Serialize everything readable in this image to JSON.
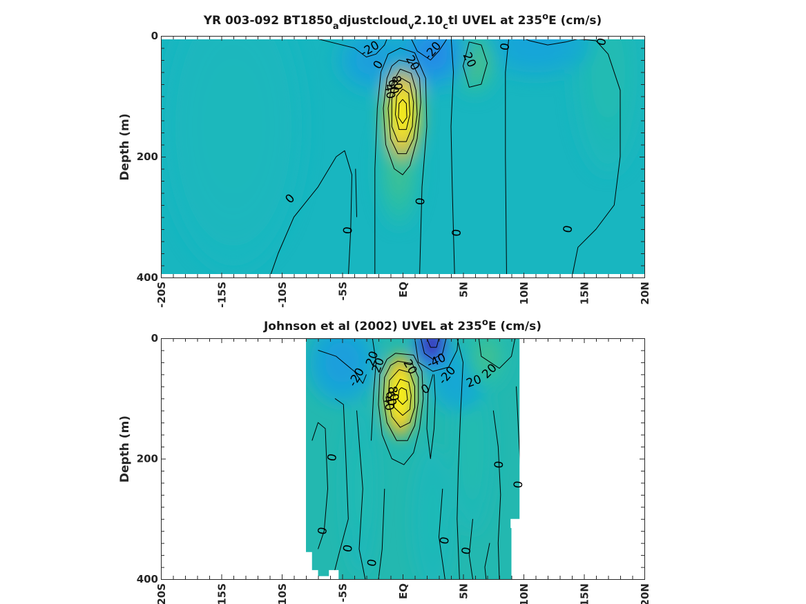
{
  "chart_data": [
    {
      "type": "heatmap",
      "title_parts": [
        "YR 003-092 BT1850",
        "a",
        "djustcloud",
        "v",
        "2.10",
        "c",
        "tl UVEL at 235",
        "o",
        "E (cm/s)"
      ],
      "ylabel": "Depth (m)",
      "xlabel": "",
      "x_ticklabels": [
        "-20S",
        "-15S",
        "-10S",
        "-5S",
        "EQ",
        "5N",
        "10N",
        "15N",
        "20N"
      ],
      "x_ticks": [
        -20,
        -15,
        -10,
        -5,
        0,
        5,
        10,
        15,
        20
      ],
      "xlim": [
        -20,
        20
      ],
      "y_ticklabels": [
        "0",
        "200",
        "400"
      ],
      "y_ticks": [
        0,
        200,
        400
      ],
      "ylim": [
        0,
        400
      ],
      "y_reversed": true,
      "data_xlim": [
        -20,
        20
      ],
      "colormap": [
        "#3e26a8",
        "#2c6ff3",
        "#1aa2db",
        "#18b6c2",
        "#2bbfa3",
        "#7abb63",
        "#d6b42e",
        "#fcc434",
        "#f9f616"
      ],
      "clim": [
        -60,
        100
      ],
      "background": "#18b6c0",
      "features": [
        {
          "lat": 0,
          "depth": 130,
          "sx": 1.3,
          "sy": 65,
          "u": 110
        },
        {
          "lat": -0.3,
          "depth": 220,
          "sx": 1.5,
          "sy": 80,
          "u": 25
        },
        {
          "lat": 2.5,
          "depth": 30,
          "sx": 2.5,
          "sy": 50,
          "u": -30
        },
        {
          "lat": -2.5,
          "depth": 40,
          "sx": 2.5,
          "sy": 45,
          "u": -22
        },
        {
          "lat": 6,
          "depth": 45,
          "sx": 1.5,
          "sy": 45,
          "u": 28
        },
        {
          "lat": 11,
          "depth": 10,
          "sx": 4,
          "sy": 50,
          "u": -18
        },
        {
          "lat": 17,
          "depth": 60,
          "sx": 2.5,
          "sy": 140,
          "u": 10
        },
        {
          "lat": -14,
          "depth": 150,
          "sx": 5,
          "sy": 200,
          "u": 4
        }
      ],
      "contour_labels": [
        {
          "text": "-20",
          "lat": -2.7,
          "depth": 22,
          "angle": -30
        },
        {
          "text": "-20",
          "lat": 2.5,
          "depth": 25,
          "angle": -50
        },
        {
          "text": "20",
          "lat": 0.8,
          "depth": 45,
          "angle": 60
        },
        {
          "text": "0",
          "lat": -2,
          "depth": 48,
          "angle": -60
        },
        {
          "text": "20",
          "lat": 5.5,
          "depth": 40,
          "angle": 65
        },
        {
          "text": "0",
          "lat": 8.5,
          "depth": 18,
          "angle": -80
        },
        {
          "text": "0",
          "lat": 16.5,
          "depth": 10,
          "angle": -75
        },
        {
          "text": "60",
          "lat": -0.8,
          "depth": 84,
          "angle": 80
        },
        {
          "text": "80",
          "lat": -0.5,
          "depth": 78,
          "angle": 80
        },
        {
          "text": "40",
          "lat": -1.1,
          "depth": 92,
          "angle": 80
        },
        {
          "text": "0",
          "lat": -9.3,
          "depth": 270,
          "angle": -45
        },
        {
          "text": "0",
          "lat": -4.5,
          "depth": 322,
          "angle": -85
        },
        {
          "text": "0",
          "lat": 1.5,
          "depth": 274,
          "angle": -85
        },
        {
          "text": "0",
          "lat": 4.5,
          "depth": 326,
          "angle": -85
        },
        {
          "text": "0",
          "lat": 13.7,
          "depth": 320,
          "angle": -80
        }
      ]
    },
    {
      "type": "heatmap",
      "title_parts": [
        "Johnson et al (2002) UVEL at 235",
        "o",
        "E (cm/s)"
      ],
      "ylabel": "Depth (m)",
      "xlabel": "",
      "x_ticklabels": [
        "-20S",
        "-15S",
        "-10S",
        "-5S",
        "EQ",
        "5N",
        "10N",
        "15N",
        "20N"
      ],
      "x_ticks": [
        -20,
        -15,
        -10,
        -5,
        0,
        5,
        10,
        15,
        20
      ],
      "xlim": [
        -20,
        20
      ],
      "y_ticklabels": [
        "0",
        "200",
        "400"
      ],
      "y_ticks": [
        0,
        200,
        400
      ],
      "ylim": [
        0,
        400
      ],
      "y_reversed": true,
      "data_xlim": [
        -8,
        9.5
      ],
      "colormap": [
        "#3e26a8",
        "#2c6ff3",
        "#1aa2db",
        "#18b6c2",
        "#2bbfa3",
        "#7abb63",
        "#d6b42e",
        "#fcc434",
        "#f9f616"
      ],
      "clim": [
        -60,
        100
      ],
      "background": "#23b8b0",
      "features": [
        {
          "lat": -0.2,
          "depth": 95,
          "sx": 1.2,
          "sy": 60,
          "u": 115
        },
        {
          "lat": 2.4,
          "depth": 10,
          "sx": 1.2,
          "sy": 35,
          "u": -60
        },
        {
          "lat": -5,
          "depth": 40,
          "sx": 2.5,
          "sy": 60,
          "u": -22
        },
        {
          "lat": 4.5,
          "depth": 70,
          "sx": 2,
          "sy": 45,
          "u": -15
        },
        {
          "lat": 7,
          "depth": 30,
          "sx": 1.5,
          "sy": 45,
          "u": 25
        },
        {
          "lat": 5.8,
          "depth": 180,
          "sx": 1.5,
          "sy": 120,
          "u": 12
        },
        {
          "lat": -3.5,
          "depth": 250,
          "sx": 1.2,
          "sy": 120,
          "u": 10
        },
        {
          "lat": 2.5,
          "depth": 300,
          "sx": 1.5,
          "sy": 100,
          "u": 8
        }
      ],
      "contour_labels": [
        {
          "text": "-20",
          "lat": -3.8,
          "depth": 65,
          "angle": -60
        },
        {
          "text": "20",
          "lat": -2.0,
          "depth": 45,
          "angle": -70
        },
        {
          "text": "20",
          "lat": -2.5,
          "depth": 34,
          "angle": -70
        },
        {
          "text": "20",
          "lat": 0.6,
          "depth": 48,
          "angle": 60
        },
        {
          "text": "-40",
          "lat": 2.8,
          "depth": 38,
          "angle": -25
        },
        {
          "text": "-20",
          "lat": 3.7,
          "depth": 62,
          "angle": -50
        },
        {
          "text": "0",
          "lat": 1.9,
          "depth": 85,
          "angle": -30
        },
        {
          "text": "20",
          "lat": 5.9,
          "depth": 72,
          "angle": -20
        },
        {
          "text": "20",
          "lat": 7.2,
          "depth": 55,
          "angle": -45
        },
        {
          "text": "60",
          "lat": -1.0,
          "depth": 100,
          "angle": 80
        },
        {
          "text": "80",
          "lat": -0.8,
          "depth": 92,
          "angle": 80
        },
        {
          "text": "40",
          "lat": -1.2,
          "depth": 108,
          "angle": 80
        },
        {
          "text": "0",
          "lat": -5.8,
          "depth": 198,
          "angle": -80
        },
        {
          "text": "0",
          "lat": 8.0,
          "depth": 210,
          "angle": -85
        },
        {
          "text": "0",
          "lat": 9.6,
          "depth": 243,
          "angle": -85
        },
        {
          "text": "0",
          "lat": -6.6,
          "depth": 320,
          "angle": -80
        },
        {
          "text": "0",
          "lat": -4.5,
          "depth": 349,
          "angle": -80
        },
        {
          "text": "0",
          "lat": 3.5,
          "depth": 336,
          "angle": -80
        },
        {
          "text": "0",
          "lat": 5.3,
          "depth": 353,
          "angle": -80
        },
        {
          "text": "0",
          "lat": -2.5,
          "depth": 373,
          "angle": -80
        }
      ]
    }
  ]
}
